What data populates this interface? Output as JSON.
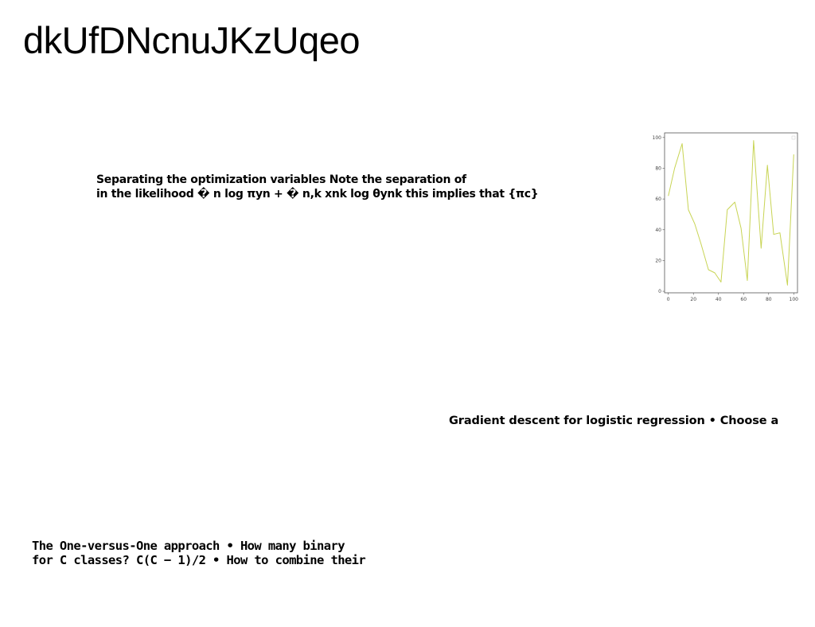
{
  "page": {
    "title": "dkUfDNcnuJKzUqeo"
  },
  "text_blocks": [
    {
      "lines": [
        "Separating the optimization variables Note the separation of",
        "in the likelihood � n log πyn + � n,k xnk log θynk this implies that {πc}"
      ]
    },
    {
      "lines": [
        "Gradient descent for logistic regression • Choose a"
      ]
    },
    {
      "lines": [
        "The One-versus-One approach • How many binary",
        "for C classes? C(C − 1)/2 • How to combine their"
      ]
    }
  ],
  "chart_data": {
    "type": "line",
    "title": "",
    "xlabel": "",
    "ylabel": "",
    "xlim": [
      -3,
      103
    ],
    "ylim": [
      -1,
      103
    ],
    "x_ticks": [
      0,
      20,
      40,
      60,
      80,
      100
    ],
    "y_ticks": [
      0,
      20,
      40,
      60,
      80,
      100
    ],
    "grid": false,
    "series": [
      {
        "color": "#c8d454",
        "x": [
          0,
          5,
          11,
          16,
          21,
          26,
          32,
          37,
          42,
          47,
          53,
          58,
          63,
          68,
          74,
          79,
          84,
          89,
          95,
          100
        ],
        "y": [
          62,
          80,
          96,
          53,
          44,
          31,
          14,
          12,
          6,
          53,
          58,
          41,
          7,
          98,
          28,
          82,
          37,
          38,
          4,
          89
        ]
      }
    ]
  }
}
